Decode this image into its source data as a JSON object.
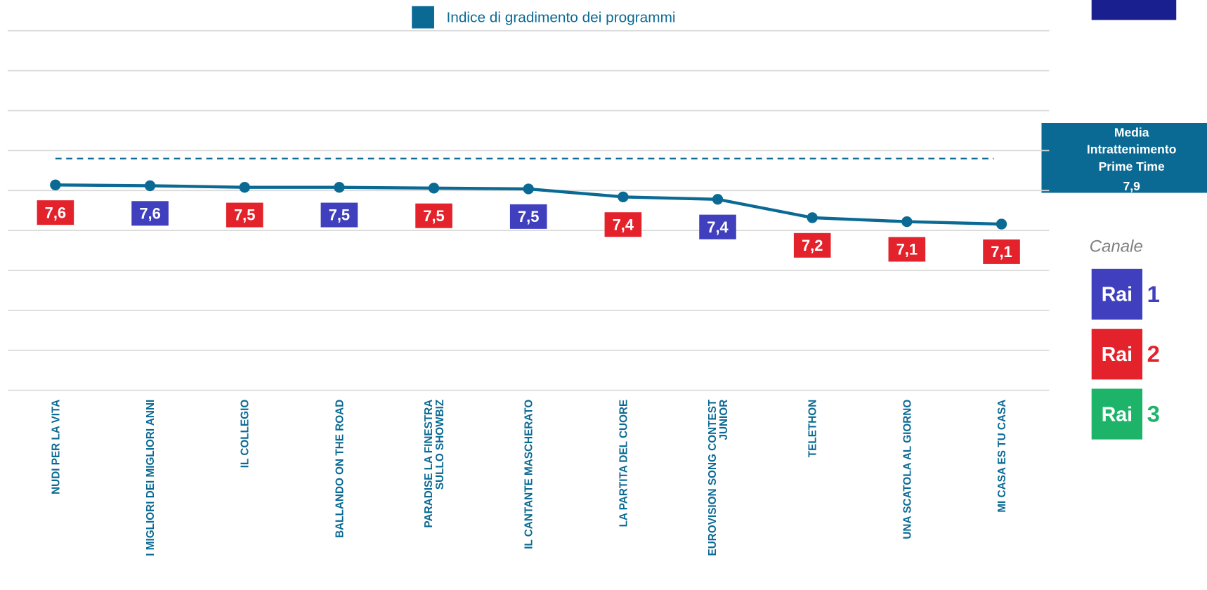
{
  "chart_data": {
    "type": "line",
    "series": [
      {
        "name": "Indice di gradimento dei programmi",
        "color": "#0b6a94",
        "values": [
          7.57,
          7.56,
          7.54,
          7.54,
          7.53,
          7.52,
          7.42,
          7.39,
          7.16,
          7.11,
          7.08
        ],
        "value_labels": [
          "7,6",
          "7,6",
          "7,5",
          "7,5",
          "7,5",
          "7,5",
          "7,4",
          "7,4",
          "7,2",
          "7,1",
          "7,1"
        ],
        "label_colors": [
          "#e3222b",
          "#4040bf",
          "#e3222b",
          "#4040bf",
          "#e3222b",
          "#4040bf",
          "#e3222b",
          "#4040bf",
          "#e3222b",
          "#e3222b",
          "#e3222b"
        ]
      }
    ],
    "categories": [
      "NUDI PER LA VITA",
      "I MIGLIORI DEI MIGLIORI ANNI",
      "IL COLLEGIO",
      "BALLANDO ON THE ROAD",
      "PARADISE LA FINESTRA\nSULLO SHOWBIZ",
      "IL CANTANTE MASCHERATO",
      "LA PARTITA DEL CUORE",
      "EUROVISION SONG CONTEST\nJUNIOR",
      "TELETHON",
      "UNA SCATOLA AL GIORNO",
      "MI CASA ES TU CASA"
    ],
    "ylim": [
      5,
      9.5
    ],
    "yticks": [
      5,
      5.5,
      6,
      6.5,
      7,
      7.5,
      8,
      8.5,
      9,
      9.5
    ],
    "grid": true,
    "reference": {
      "lines": [
        "Media",
        "Intrattenimento",
        "Prime Time"
      ],
      "value": 7.9,
      "value_label": "7,9",
      "color": "#0b6a94"
    },
    "channel_legend": {
      "title": "Canale",
      "channels": [
        {
          "name": "Rai",
          "number": "1",
          "color": "#4040bf"
        },
        {
          "name": "Rai",
          "number": "2",
          "color": "#e3222b"
        },
        {
          "name": "Rai",
          "number": "3",
          "color": "#1db46a"
        }
      ]
    }
  }
}
